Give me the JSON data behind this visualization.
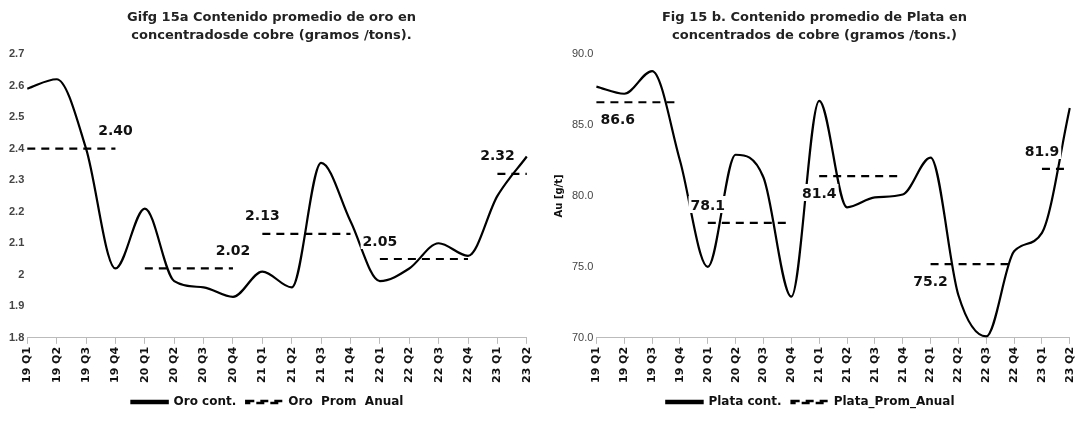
{
  "chart_data": [
    {
      "type": "line",
      "title": "Gifg 15a Contenido promedio de oro en concentradosde cobre  (gramos /tons).",
      "categories": [
        "19 Q1",
        "19 Q2",
        "19 Q3",
        "19 Q4",
        "20 Q1",
        "20 Q2",
        "20 Q3",
        "20 Q4",
        "21 Q1",
        "21 Q2",
        "21 Q3",
        "21 Q4",
        "22 Q1",
        "22 Q2",
        "22 Q3",
        "22 Q4",
        "23 Q1",
        "23 Q2"
      ],
      "series": [
        {
          "name": "Oro cont.",
          "color": "#000000",
          "line_style": "solid",
          "values": [
            2.59,
            2.62,
            2.4,
            2.02,
            2.21,
            1.98,
            1.96,
            1.93,
            2.01,
            1.96,
            2.355,
            2.17,
            1.98,
            2.02,
            2.1,
            2.06,
            2.25,
            2.375
          ]
        },
        {
          "name": "Oro  Prom  Anual",
          "color": "#000000",
          "line_style": "dashed",
          "values": [
            2.4,
            2.4,
            2.4,
            2.4,
            2.02,
            2.02,
            2.02,
            2.02,
            2.13,
            2.13,
            2.13,
            2.13,
            2.05,
            2.05,
            2.05,
            2.05,
            2.32,
            2.32
          ],
          "value_labels": [
            null,
            null,
            null,
            "2.40",
            null,
            null,
            null,
            "2.02",
            "2.13",
            null,
            null,
            null,
            "2.05",
            null,
            null,
            null,
            "2.32",
            null
          ]
        }
      ],
      "ylim": [
        1.8,
        2.7
      ],
      "yticks": [
        1.8,
        1.9,
        2.0,
        2.1,
        2.2,
        2.3,
        2.4,
        2.5,
        2.6,
        2.7
      ],
      "grid": false,
      "legend": "bottom",
      "marker": "none"
    },
    {
      "type": "line",
      "title": "Fig 15 b. Contenido promedio de Plata en concentrados de cobre (gramos /tons.)",
      "ylabel": "Au [g/t]",
      "categories": [
        "19 Q1",
        "19 Q2",
        "19 Q3",
        "19 Q4",
        "20 Q1",
        "20 Q2",
        "20 Q3",
        "20 Q4",
        "21 Q1",
        "21 Q2",
        "21 Q3",
        "21 Q4",
        "22 Q1",
        "22 Q2",
        "22 Q3",
        "22 Q4",
        "23 Q1",
        "23 Q2"
      ],
      "series": [
        {
          "name": "Plata cont.",
          "color": "#000000",
          "line_style": "solid",
          "values": [
            87.7,
            87.2,
            88.8,
            82.5,
            75.0,
            82.9,
            81.3,
            72.9,
            86.7,
            79.2,
            79.9,
            80.1,
            82.7,
            73.0,
            70.1,
            76.1,
            77.4,
            86.2
          ]
        },
        {
          "name": "Plata_Prom_Anual",
          "color": "#000000",
          "line_style": "dashed",
          "values": [
            86.6,
            86.6,
            86.6,
            86.6,
            78.1,
            78.1,
            78.1,
            78.1,
            81.4,
            81.4,
            81.4,
            81.4,
            75.2,
            75.2,
            75.2,
            75.2,
            81.9,
            81.9
          ],
          "value_labels": [
            "86.6",
            null,
            null,
            null,
            "78.1",
            null,
            null,
            null,
            "81.4",
            null,
            null,
            null,
            "75.2",
            null,
            null,
            null,
            "81.9",
            null
          ]
        }
      ],
      "ylim": [
        70,
        90
      ],
      "yticks": [
        {
          "value": 70,
          "label": "70.0"
        },
        {
          "value": 75,
          "label": "75.0"
        },
        {
          "value": 80,
          "label": "80.0"
        },
        {
          "value": 85,
          "label": "85.0"
        },
        {
          "value": 90,
          "label": "90.0"
        }
      ],
      "grid": false,
      "legend": "bottom",
      "marker": "none"
    }
  ]
}
